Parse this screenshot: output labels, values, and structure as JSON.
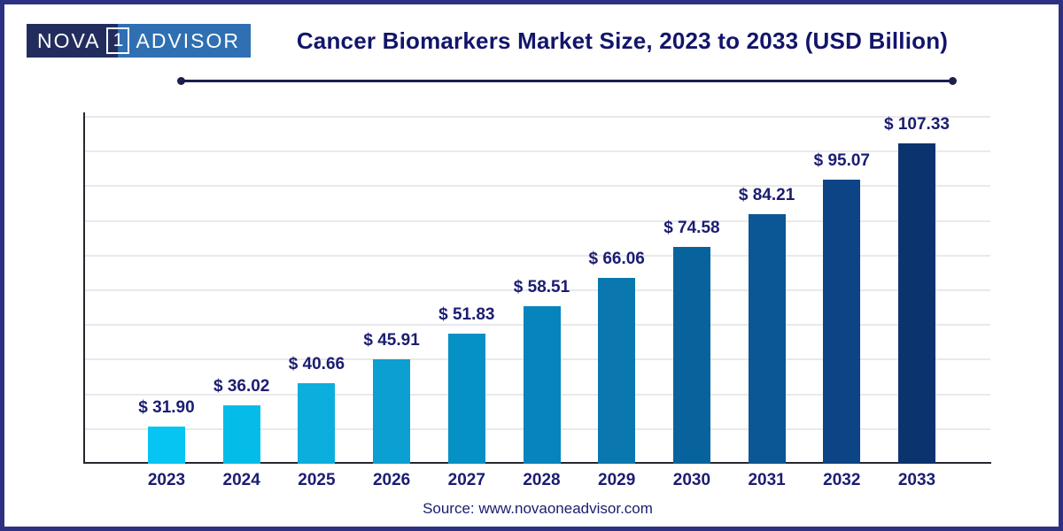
{
  "brand": {
    "name_left": "NOVA",
    "name_boxed": "1",
    "name_right": "ADVISOR"
  },
  "header": {
    "title": "Cancer Biomarkers Market Size, 2023 to 2033 (USD Billion)"
  },
  "footer": {
    "source": "Source: www.novaoneadvisor.com"
  },
  "colors": {
    "frame_border": "#2E3181",
    "title_text": "#12156B",
    "label_text": "#1B1D72",
    "source_text": "#1B1D6E",
    "logo_left_bg": "#222D5E",
    "logo_right_bg": "#2F6FB2",
    "underline": "#1A1F4E",
    "axis": "#26262E",
    "gridline": "#E9E9ED"
  },
  "chart_data": {
    "type": "bar",
    "title": "Cancer Biomarkers Market Size, 2023 to 2033 (USD Billion)",
    "unit": "USD Billion",
    "categories": [
      "2023",
      "2024",
      "2025",
      "2026",
      "2027",
      "2028",
      "2029",
      "2030",
      "2031",
      "2032",
      "2033"
    ],
    "values": [
      31.9,
      36.02,
      40.66,
      45.91,
      51.83,
      58.51,
      66.06,
      74.58,
      84.21,
      95.07,
      107.33
    ],
    "value_labels": [
      "$ 31.90",
      "$ 36.02",
      "$ 40.66",
      "$ 45.91",
      "$ 51.83",
      "$ 58.51",
      "$ 66.06",
      "$ 74.58",
      "$ 84.21",
      "$ 95.07",
      "$ 107.33"
    ],
    "bar_colors": [
      "#07C5F2",
      "#05BCE9",
      "#0BAEDD",
      "#0C9FD1",
      "#0591C5",
      "#0884BC",
      "#0A77AF",
      "#08639D",
      "#0B5695",
      "#0C4485",
      "#0B346F"
    ],
    "grid": true,
    "gridline_count": 10,
    "legend": "none",
    "xlabel": "",
    "ylabel": ""
  }
}
